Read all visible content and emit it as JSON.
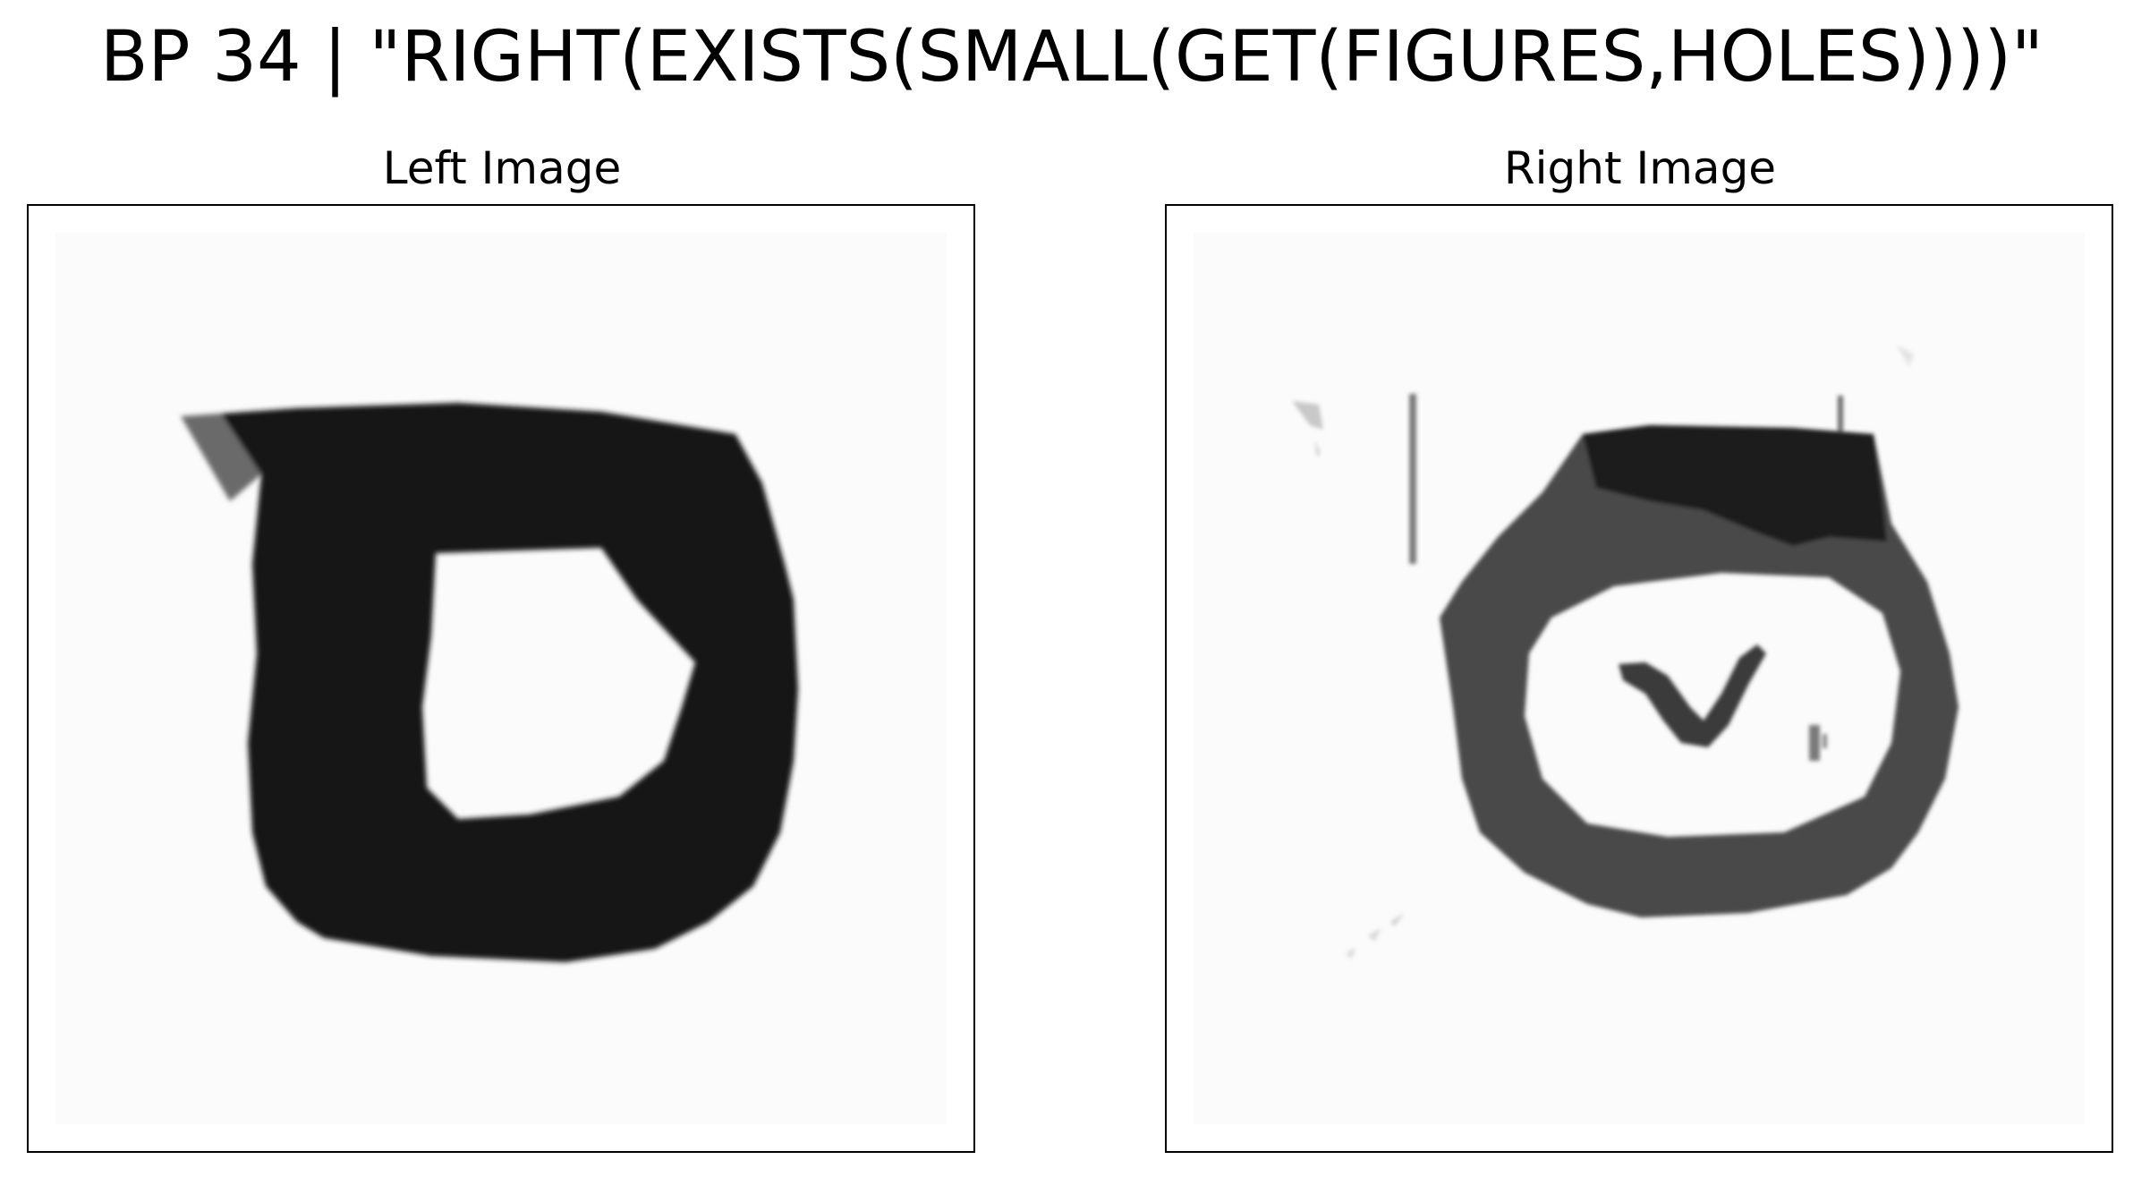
{
  "title": "BP 34 | \"RIGHT(EXISTS(SMALL(GET(FIGURES,HOLES))))\"",
  "left_panel": {
    "title": "Left Image",
    "icon": "letter-d-shape-with-hole"
  },
  "right_panel": {
    "title": "Right Image",
    "icon": "ring-shape-with-small-figure-inside"
  },
  "colors": {
    "background": "#ffffff",
    "ink_dark": "#111111",
    "ink_gray": "#555555",
    "border": "#000000"
  }
}
